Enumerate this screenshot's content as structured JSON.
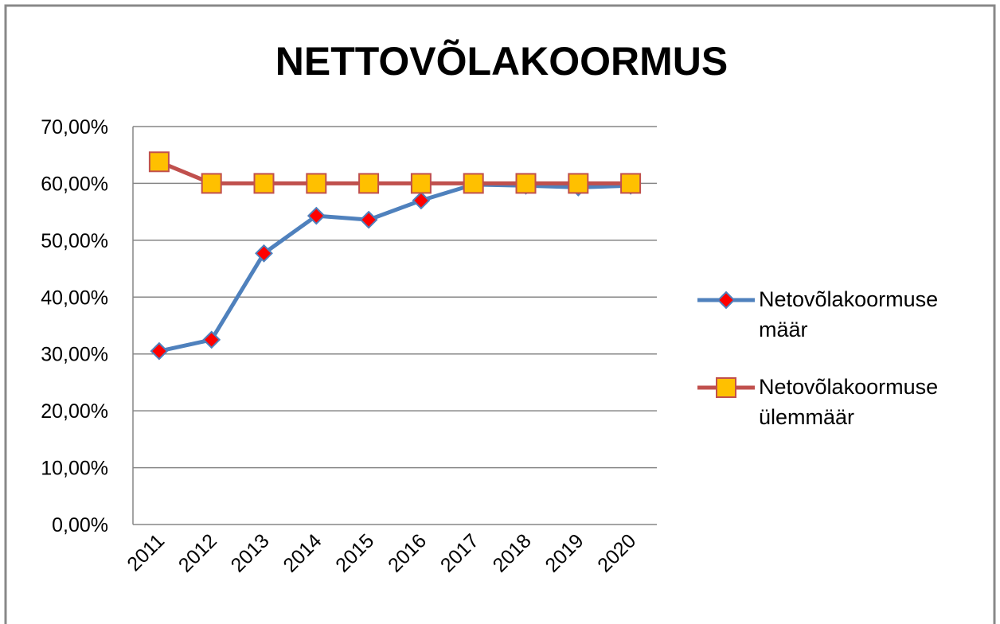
{
  "chart_data": {
    "type": "line",
    "title": "NETTOVÕLAKOORMUS",
    "categories": [
      "2011",
      "2012",
      "2013",
      "2014",
      "2015",
      "2016",
      "2017",
      "2018",
      "2019",
      "2020"
    ],
    "series": [
      {
        "name": "Netovõlakoormuse määr",
        "color": "#4f81bd",
        "marker": "diamond",
        "marker_color": "#ff0000",
        "values": [
          30.5,
          32.5,
          47.7,
          54.3,
          53.6,
          57.0,
          59.8,
          59.6,
          59.3,
          59.6
        ]
      },
      {
        "name": "Netovõlakoormuse ülemmäär",
        "color": "#c0504d",
        "marker": "square",
        "marker_color": "#ffc000",
        "values": [
          63.8,
          60,
          60,
          60,
          60,
          60,
          60,
          60,
          60,
          60
        ]
      }
    ],
    "ylim": [
      0,
      70
    ],
    "yticks": [
      {
        "value": 0,
        "label": "0,00%"
      },
      {
        "value": 10,
        "label": "10,00%"
      },
      {
        "value": 20,
        "label": "20,00%"
      },
      {
        "value": 30,
        "label": "30,00%"
      },
      {
        "value": 40,
        "label": "40,00%"
      },
      {
        "value": 50,
        "label": "50,00%"
      },
      {
        "value": 60,
        "label": "60,00%"
      },
      {
        "value": 70,
        "label": "70,00%"
      }
    ],
    "grid": true,
    "legend": "right"
  }
}
